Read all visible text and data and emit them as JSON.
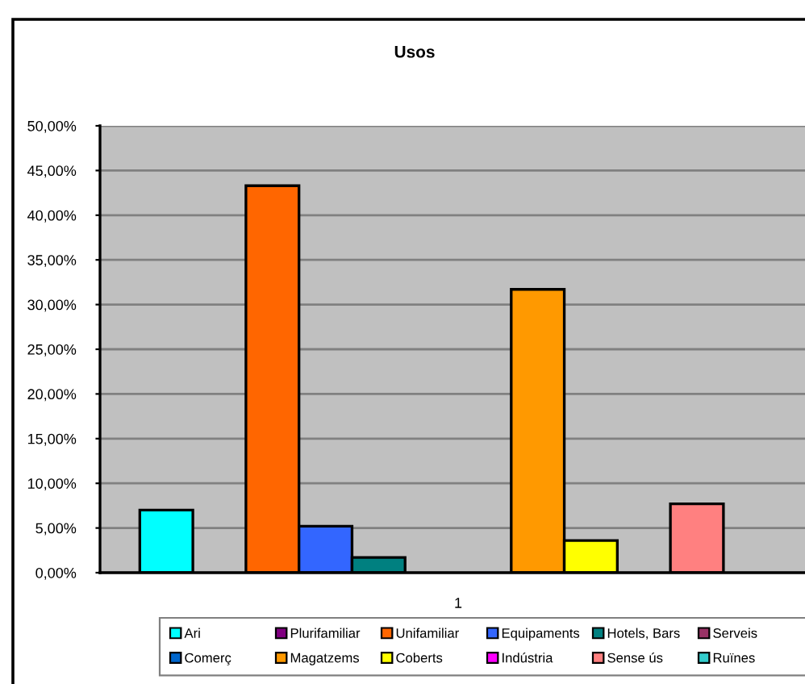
{
  "chart_data": {
    "type": "bar",
    "title": "Usos",
    "categories": [
      "1"
    ],
    "series": [
      {
        "name": "Ari",
        "color": "#00ffff",
        "values": [
          7.0
        ]
      },
      {
        "name": "Plurifamiliar",
        "color": "#800080",
        "values": [
          null
        ]
      },
      {
        "name": "Unifamiliar",
        "color": "#ff6600",
        "values": [
          43.3
        ]
      },
      {
        "name": "Equipaments",
        "color": "#3366ff",
        "values": [
          5.2
        ]
      },
      {
        "name": "Hotels, Bars",
        "color": "#008080",
        "values": [
          1.7
        ]
      },
      {
        "name": "Serveis",
        "color": "#993366",
        "values": [
          null
        ]
      },
      {
        "name": "Comerç",
        "color": "#0066cc",
        "values": [
          null
        ]
      },
      {
        "name": "Magatzems",
        "color": "#ff9900",
        "values": [
          31.7
        ]
      },
      {
        "name": "Coberts",
        "color": "#ffff00",
        "values": [
          3.6
        ]
      },
      {
        "name": "Indústria",
        "color": "#ff00ff",
        "values": [
          null
        ]
      },
      {
        "name": "Sense ús",
        "color": "#ff8080",
        "values": [
          7.7
        ]
      },
      {
        "name": "Ruïnes",
        "color": "#33cccc",
        "values": [
          null
        ]
      }
    ],
    "ylim": [
      0,
      50
    ],
    "yticks": [
      {
        "value": 0,
        "label": "0,00%"
      },
      {
        "value": 5,
        "label": "5,00%"
      },
      {
        "value": 10,
        "label": "10,00%"
      },
      {
        "value": 15,
        "label": "15,00%"
      },
      {
        "value": 20,
        "label": "20,00%"
      },
      {
        "value": 25,
        "label": "25,00%"
      },
      {
        "value": 30,
        "label": "30,00%"
      },
      {
        "value": 35,
        "label": "35,00%"
      },
      {
        "value": 40,
        "label": "40,00%"
      },
      {
        "value": 45,
        "label": "45,00%"
      },
      {
        "value": 50,
        "label": "50,00%"
      }
    ],
    "grid": "y",
    "legend": "bottom"
  }
}
